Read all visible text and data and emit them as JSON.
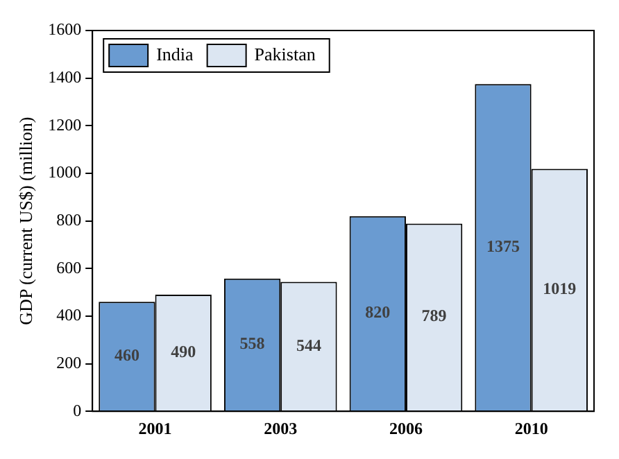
{
  "chart_data": {
    "type": "bar",
    "ylabel": "GDP (current US$) (million)",
    "categories": [
      "2001",
      "2003",
      "2006",
      "2010"
    ],
    "series": [
      {
        "name": "India",
        "color": "#6a9bd1",
        "values": [
          460,
          558,
          820,
          1375
        ]
      },
      {
        "name": "Pakistan",
        "color": "#dce6f2",
        "values": [
          490,
          544,
          789,
          1019
        ]
      }
    ],
    "ylim": [
      0,
      1600
    ],
    "yticks": [
      0,
      200,
      400,
      600,
      800,
      1000,
      1200,
      1400,
      1600
    ],
    "grid": false,
    "legend": "top left",
    "data_labels": true
  }
}
